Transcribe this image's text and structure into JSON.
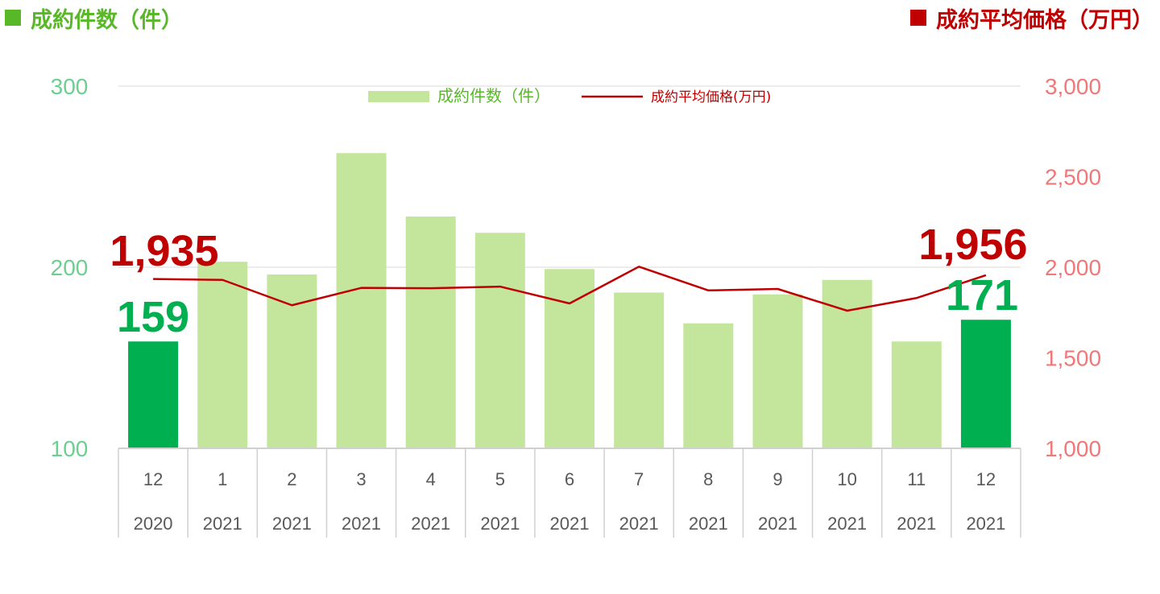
{
  "header": {
    "left_title": "成約件数（件）",
    "right_title": "成約平均価格（万円）",
    "left_color": "#58b828",
    "right_color": "#c00000"
  },
  "chart_data": {
    "type": "bar",
    "categories": [
      {
        "month": "12",
        "year": "2020"
      },
      {
        "month": "1",
        "year": "2021"
      },
      {
        "month": "2",
        "year": "2021"
      },
      {
        "month": "3",
        "year": "2021"
      },
      {
        "month": "4",
        "year": "2021"
      },
      {
        "month": "5",
        "year": "2021"
      },
      {
        "month": "6",
        "year": "2021"
      },
      {
        "month": "7",
        "year": "2021"
      },
      {
        "month": "8",
        "year": "2021"
      },
      {
        "month": "9",
        "year": "2021"
      },
      {
        "month": "10",
        "year": "2021"
      },
      {
        "month": "11",
        "year": "2021"
      },
      {
        "month": "12",
        "year": "2021"
      }
    ],
    "series": [
      {
        "name": "成約件数（件）",
        "type": "bar",
        "axis": "left",
        "values": [
          159,
          203,
          196,
          263,
          228,
          219,
          199,
          186,
          169,
          185,
          193,
          159,
          171
        ],
        "color": "#c4e59c",
        "highlight_color": "#00b050",
        "highlight_indices": [
          0,
          12
        ]
      },
      {
        "name": "成約平均価格(万円)",
        "type": "line",
        "axis": "right",
        "values": [
          1935,
          1930,
          1790,
          1886,
          1884,
          1893,
          1800,
          2003,
          1872,
          1880,
          1760,
          1830,
          1956
        ],
        "color": "#c00000"
      }
    ],
    "left_axis": {
      "min": 100,
      "max": 300,
      "ticks": [
        "100",
        "200",
        "300"
      ],
      "color": "#6dcf8f"
    },
    "right_axis": {
      "min": 1000,
      "max": 3000,
      "ticks": [
        "1,000",
        "1,500",
        "2,000",
        "2,500",
        "3,000"
      ],
      "color": "#f07878"
    },
    "grid": "horizontal",
    "legend": "top-center",
    "data_labels": [
      {
        "series": 0,
        "index": 0,
        "text": "159",
        "color": "#00b050"
      },
      {
        "series": 0,
        "index": 12,
        "text": "171",
        "color": "#00b050"
      },
      {
        "series": 1,
        "index": 0,
        "text": "1,935",
        "color": "#c00000"
      },
      {
        "series": 1,
        "index": 12,
        "text": "1,956",
        "color": "#c00000"
      }
    ]
  }
}
